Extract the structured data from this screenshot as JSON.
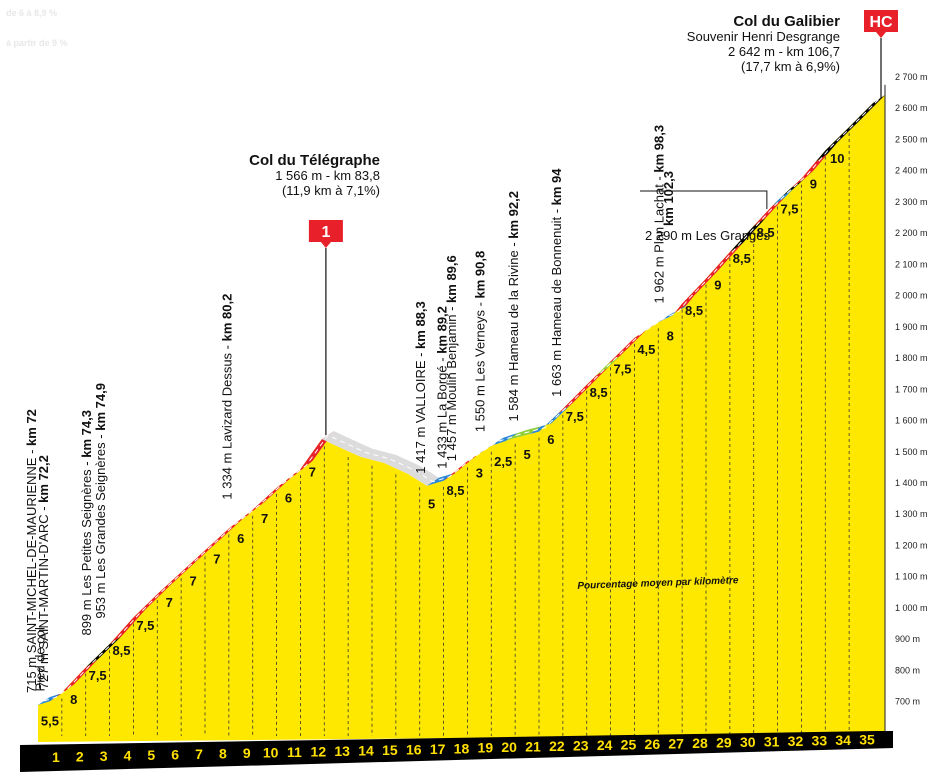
{
  "ghost_legend": [
    "de 6 à 8,9 %",
    "à partir de 9 %"
  ],
  "legend_text": "Pourcentage moyen par kilomètre",
  "colors": {
    "fill": "#ffe800",
    "base": "#000000",
    "grade_low": "#2a86d6",
    "grade_mid": "#e8202a",
    "grade_high": "#000000",
    "grade_flat": "#8fcf3a",
    "descent": "#dcdcdc",
    "marker": "#e8202a"
  },
  "chart_data": {
    "type": "area",
    "title": "",
    "xlabel": "",
    "ylabel": "",
    "ylim": [
      600,
      2700
    ],
    "y_ticks": [
      "700 m",
      "800 m",
      "900 m",
      "1 000 m",
      "1 100 m",
      "1 200 m",
      "1 300 m",
      "1 400 m",
      "1 500 m",
      "1 600 m",
      "1 700 m",
      "1 800 m",
      "1 900 m",
      "2 000 m",
      "2 100 m",
      "2 200 m",
      "2 300 m",
      "2 400 m",
      "2 500 m",
      "2 600 m",
      "2 700 m"
    ],
    "km_labels": [
      "1",
      "2",
      "3",
      "4",
      "5",
      "6",
      "7",
      "8",
      "9",
      "10",
      "11",
      "12",
      "13",
      "14",
      "15",
      "16",
      "17",
      "18",
      "19",
      "20",
      "21",
      "22",
      "23",
      "24",
      "25",
      "26",
      "27",
      "28",
      "29",
      "30",
      "31",
      "32",
      "33",
      "34",
      "35"
    ],
    "gradients": [
      "5,5",
      "8",
      "7,5",
      "8,5",
      "7,5",
      "7",
      "7",
      "7",
      "6",
      "7",
      "6",
      "7",
      "",
      "",
      "",
      "",
      "5",
      "8,5",
      "3",
      "2,5",
      "5",
      "6",
      "7,5",
      "8,5",
      "7,5",
      "4,5",
      "8",
      "8,5",
      "9",
      "8,5",
      "8,5",
      "7,5",
      "9",
      "10",
      ""
    ],
    "profile": [
      {
        "km": 0,
        "alt": 715
      },
      {
        "km": 0.5,
        "alt": 727
      },
      {
        "km": 1,
        "alt": 755
      },
      {
        "km": 2,
        "alt": 835
      },
      {
        "km": 3,
        "alt": 910
      },
      {
        "km": 4,
        "alt": 995
      },
      {
        "km": 5,
        "alt": 1070
      },
      {
        "km": 6,
        "alt": 1140
      },
      {
        "km": 7,
        "alt": 1210
      },
      {
        "km": 8,
        "alt": 1280
      },
      {
        "km": 9,
        "alt": 1340
      },
      {
        "km": 10,
        "alt": 1410
      },
      {
        "km": 11,
        "alt": 1470
      },
      {
        "km": 11.9,
        "alt": 1566
      },
      {
        "km": 12.5,
        "alt": 1545
      },
      {
        "km": 13.5,
        "alt": 1510
      },
      {
        "km": 14.5,
        "alt": 1490
      },
      {
        "km": 15.5,
        "alt": 1455
      },
      {
        "km": 16.3,
        "alt": 1417
      },
      {
        "km": 17,
        "alt": 1433
      },
      {
        "km": 18,
        "alt": 1495
      },
      {
        "km": 19,
        "alt": 1545
      },
      {
        "km": 20,
        "alt": 1570
      },
      {
        "km": 21,
        "alt": 1590
      },
      {
        "km": 22,
        "alt": 1663
      },
      {
        "km": 23,
        "alt": 1740
      },
      {
        "km": 24,
        "alt": 1815
      },
      {
        "km": 25,
        "alt": 1890
      },
      {
        "km": 26,
        "alt": 1940
      },
      {
        "km": 26.6,
        "alt": 1962
      },
      {
        "km": 27,
        "alt": 2000
      },
      {
        "km": 28,
        "alt": 2080
      },
      {
        "km": 29,
        "alt": 2165
      },
      {
        "km": 30.5,
        "alt": 2290
      },
      {
        "km": 31,
        "alt": 2330
      },
      {
        "km": 32,
        "alt": 2400
      },
      {
        "km": 33,
        "alt": 2490
      },
      {
        "km": 34,
        "alt": 2565
      },
      {
        "km": 35,
        "alt": 2642
      }
    ],
    "segments": [
      {
        "from": 0,
        "to": 0.5,
        "grade": "low"
      },
      {
        "from": 0.5,
        "to": 2,
        "grade": "mid"
      },
      {
        "from": 2,
        "to": 3,
        "grade": "high"
      },
      {
        "from": 3,
        "to": 11.9,
        "grade": "mid"
      },
      {
        "from": 11.9,
        "to": 16.3,
        "grade": "descent"
      },
      {
        "from": 16.3,
        "to": 17,
        "grade": "low"
      },
      {
        "from": 17,
        "to": 18.2,
        "grade": "mid"
      },
      {
        "from": 18.2,
        "to": 19.6,
        "grade": "low"
      },
      {
        "from": 19.6,
        "to": 20.6,
        "grade": "flat"
      },
      {
        "from": 20.6,
        "to": 21.8,
        "grade": "low"
      },
      {
        "from": 21.8,
        "to": 23.4,
        "grade": "mid"
      },
      {
        "from": 23.4,
        "to": 23.9,
        "grade": "flat"
      },
      {
        "from": 23.9,
        "to": 25.5,
        "grade": "mid"
      },
      {
        "from": 25.5,
        "to": 26.7,
        "grade": "low"
      },
      {
        "from": 26.7,
        "to": 29,
        "grade": "mid"
      },
      {
        "from": 29,
        "to": 30,
        "grade": "high"
      },
      {
        "from": 30,
        "to": 30.8,
        "grade": "mid"
      },
      {
        "from": 30.8,
        "to": 31.2,
        "grade": "low"
      },
      {
        "from": 31.2,
        "to": 31.6,
        "grade": "high"
      },
      {
        "from": 31.6,
        "to": 32.6,
        "grade": "mid"
      },
      {
        "from": 32.6,
        "to": 35,
        "grade": "high"
      }
    ],
    "waypoints": [
      {
        "km": 0,
        "alt": 715,
        "text": "715 m SAINT-MICHEL-DE-MAURIENNE - ",
        "km_text": "km 72"
      },
      {
        "km": 0.35,
        "alt": 720,
        "text": "Pied de col",
        "km_text": ""
      },
      {
        "km": 0.5,
        "alt": 727,
        "text": "727 m SAINT-MARTIN-D'ARC - ",
        "km_text": "km 72,2"
      },
      {
        "km": 2.3,
        "alt": 899,
        "text": "899 m Les Petites Seignères - ",
        "km_text": "km 74,3"
      },
      {
        "km": 2.9,
        "alt": 953,
        "text": "953 m Les Grandes Seignères - ",
        "km_text": "km 74,9"
      },
      {
        "km": 8.2,
        "alt": 1334,
        "text": "1 334 m Lavizard Dessus - ",
        "km_text": "km 80,2"
      },
      {
        "km": 16.3,
        "alt": 1417,
        "text": "1 417 m VALLOIRE - ",
        "km_text": "km 88,3"
      },
      {
        "km": 17.2,
        "alt": 1433,
        "text": "1 433 m La Borgé - ",
        "km_text": "km 89,2"
      },
      {
        "km": 17.6,
        "alt": 1457,
        "text": "1 457 m Moulin Benjamin - ",
        "km_text": "km 89,6"
      },
      {
        "km": 18.8,
        "alt": 1550,
        "text": "1 550 m Les Verneys - ",
        "km_text": "km 90,8"
      },
      {
        "km": 20.2,
        "alt": 1584,
        "text": "1 584 m Hameau de la Rivine - ",
        "km_text": "km 92,2"
      },
      {
        "km": 22,
        "alt": 1663,
        "text": "1 663 m Hameau de Bonnenuit - ",
        "km_text": "km 94"
      },
      {
        "km": 26.3,
        "alt": 1962,
        "text": "1 962 m Plan Lachat - ",
        "km_text": "km 98,3"
      }
    ],
    "callout_2290": {
      "km": 30.3,
      "alt": 2290,
      "line1": "2 290 m Les Granges",
      "line2": "km 102,3"
    },
    "summits": [
      {
        "km": 11.9,
        "alt": 1566,
        "name": "Col du Télégraphe",
        "line1": "1 566 m - km 83,8",
        "line2": "(11,9 km à 7,1%)",
        "category": "1",
        "subtitle": ""
      },
      {
        "km": 35,
        "alt": 2642,
        "name": "Col du Galibier",
        "subtitle": "Souvenir Henri Desgrange",
        "line1": "2 642 m - km 106,7",
        "line2": "(17,7 km à 6,9%)",
        "category": "HC"
      }
    ]
  }
}
